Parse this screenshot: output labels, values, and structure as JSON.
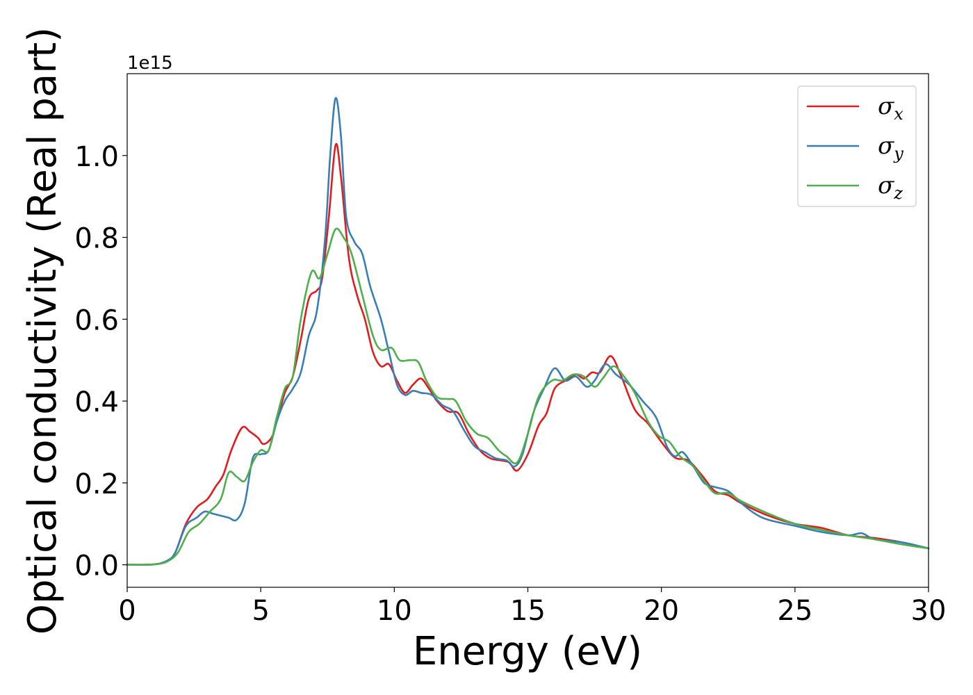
{
  "chart_data": {
    "type": "line",
    "xlabel": "Energy (eV)",
    "ylabel": "Optical conductivity (Real part)",
    "y_offset_label": "1e15",
    "xlim": [
      0,
      30
    ],
    "ylim": [
      -0.055,
      1.2
    ],
    "x_ticks": [
      0,
      5,
      10,
      15,
      20,
      25,
      30
    ],
    "x_tick_labels": [
      "0",
      "5",
      "10",
      "15",
      "20",
      "25",
      "30"
    ],
    "y_ticks": [
      0.0,
      0.2,
      0.4,
      0.6,
      0.8,
      1.0
    ],
    "y_tick_labels": [
      "0.0",
      "0.2",
      "0.4",
      "0.6",
      "0.8",
      "1.0"
    ],
    "grid": false,
    "legend_position": "top-right",
    "series": [
      {
        "name": "σx",
        "symbol": "σ",
        "subscript": "x",
        "color": "#e41a1c",
        "points": [
          [
            0,
            0.0
          ],
          [
            1.0,
            0.001
          ],
          [
            1.5,
            0.01
          ],
          [
            1.8,
            0.03
          ],
          [
            2.2,
            0.1
          ],
          [
            2.6,
            0.14
          ],
          [
            3.0,
            0.16
          ],
          [
            3.3,
            0.19
          ],
          [
            3.6,
            0.22
          ],
          [
            3.9,
            0.28
          ],
          [
            4.3,
            0.335
          ],
          [
            4.6,
            0.325
          ],
          [
            4.9,
            0.31
          ],
          [
            5.1,
            0.295
          ],
          [
            5.4,
            0.31
          ],
          [
            5.6,
            0.35
          ],
          [
            5.9,
            0.42
          ],
          [
            6.2,
            0.46
          ],
          [
            6.5,
            0.55
          ],
          [
            6.8,
            0.65
          ],
          [
            7.1,
            0.67
          ],
          [
            7.3,
            0.7
          ],
          [
            7.55,
            0.85
          ],
          [
            7.8,
            1.025
          ],
          [
            8.0,
            0.95
          ],
          [
            8.3,
            0.75
          ],
          [
            8.6,
            0.66
          ],
          [
            8.9,
            0.6
          ],
          [
            9.2,
            0.52
          ],
          [
            9.5,
            0.485
          ],
          [
            9.8,
            0.49
          ],
          [
            10.1,
            0.45
          ],
          [
            10.4,
            0.42
          ],
          [
            10.7,
            0.44
          ],
          [
            11.0,
            0.455
          ],
          [
            11.3,
            0.43
          ],
          [
            11.6,
            0.4
          ],
          [
            12.0,
            0.375
          ],
          [
            12.4,
            0.37
          ],
          [
            12.8,
            0.32
          ],
          [
            13.2,
            0.28
          ],
          [
            13.6,
            0.26
          ],
          [
            14.0,
            0.255
          ],
          [
            14.3,
            0.25
          ],
          [
            14.6,
            0.23
          ],
          [
            15.0,
            0.27
          ],
          [
            15.4,
            0.34
          ],
          [
            15.7,
            0.37
          ],
          [
            16.0,
            0.43
          ],
          [
            16.4,
            0.45
          ],
          [
            16.8,
            0.465
          ],
          [
            17.1,
            0.455
          ],
          [
            17.4,
            0.47
          ],
          [
            17.7,
            0.47
          ],
          [
            18.1,
            0.51
          ],
          [
            18.5,
            0.46
          ],
          [
            19.0,
            0.38
          ],
          [
            19.5,
            0.345
          ],
          [
            20.0,
            0.3
          ],
          [
            20.5,
            0.262
          ],
          [
            21.0,
            0.255
          ],
          [
            21.5,
            0.22
          ],
          [
            22.0,
            0.18
          ],
          [
            22.5,
            0.17
          ],
          [
            23.0,
            0.15
          ],
          [
            24.0,
            0.12
          ],
          [
            25.0,
            0.1
          ],
          [
            26.0,
            0.09
          ],
          [
            27.0,
            0.072
          ],
          [
            28.0,
            0.065
          ],
          [
            29.0,
            0.055
          ],
          [
            30.0,
            0.04
          ]
        ]
      },
      {
        "name": "σy",
        "symbol": "σ",
        "subscript": "y",
        "color": "#377eb8",
        "points": [
          [
            0,
            0.0
          ],
          [
            1.0,
            0.001
          ],
          [
            1.5,
            0.01
          ],
          [
            1.8,
            0.03
          ],
          [
            2.2,
            0.095
          ],
          [
            2.6,
            0.115
          ],
          [
            2.9,
            0.13
          ],
          [
            3.2,
            0.125
          ],
          [
            3.5,
            0.12
          ],
          [
            3.8,
            0.115
          ],
          [
            4.1,
            0.11
          ],
          [
            4.4,
            0.15
          ],
          [
            4.7,
            0.26
          ],
          [
            5.0,
            0.27
          ],
          [
            5.3,
            0.28
          ],
          [
            5.6,
            0.35
          ],
          [
            5.9,
            0.4
          ],
          [
            6.2,
            0.43
          ],
          [
            6.5,
            0.47
          ],
          [
            6.8,
            0.56
          ],
          [
            7.1,
            0.62
          ],
          [
            7.4,
            0.79
          ],
          [
            7.6,
            1.0
          ],
          [
            7.8,
            1.14
          ],
          [
            8.0,
            1.05
          ],
          [
            8.2,
            0.85
          ],
          [
            8.5,
            0.79
          ],
          [
            8.8,
            0.76
          ],
          [
            9.1,
            0.68
          ],
          [
            9.5,
            0.6
          ],
          [
            9.8,
            0.52
          ],
          [
            10.1,
            0.44
          ],
          [
            10.4,
            0.415
          ],
          [
            10.7,
            0.425
          ],
          [
            11.0,
            0.42
          ],
          [
            11.4,
            0.415
          ],
          [
            11.8,
            0.39
          ],
          [
            12.2,
            0.375
          ],
          [
            12.6,
            0.33
          ],
          [
            13.0,
            0.29
          ],
          [
            13.4,
            0.275
          ],
          [
            13.8,
            0.26
          ],
          [
            14.2,
            0.255
          ],
          [
            14.5,
            0.24
          ],
          [
            14.8,
            0.27
          ],
          [
            15.2,
            0.37
          ],
          [
            15.6,
            0.43
          ],
          [
            16.0,
            0.48
          ],
          [
            16.4,
            0.45
          ],
          [
            16.8,
            0.46
          ],
          [
            17.2,
            0.435
          ],
          [
            17.5,
            0.45
          ],
          [
            17.9,
            0.49
          ],
          [
            18.3,
            0.465
          ],
          [
            18.8,
            0.44
          ],
          [
            19.3,
            0.4
          ],
          [
            19.8,
            0.36
          ],
          [
            20.2,
            0.29
          ],
          [
            20.5,
            0.265
          ],
          [
            20.8,
            0.275
          ],
          [
            21.2,
            0.24
          ],
          [
            21.6,
            0.2
          ],
          [
            22.0,
            0.19
          ],
          [
            22.5,
            0.18
          ],
          [
            23.0,
            0.15
          ],
          [
            23.5,
            0.125
          ],
          [
            24.0,
            0.11
          ],
          [
            25.0,
            0.095
          ],
          [
            26.0,
            0.08
          ],
          [
            27.0,
            0.072
          ],
          [
            27.5,
            0.077
          ],
          [
            28.0,
            0.062
          ],
          [
            29.0,
            0.055
          ],
          [
            30.0,
            0.04
          ]
        ]
      },
      {
        "name": "σz",
        "symbol": "σ",
        "subscript": "z",
        "color": "#4daf4a",
        "points": [
          [
            0,
            0.0
          ],
          [
            1.0,
            0.001
          ],
          [
            1.5,
            0.008
          ],
          [
            1.9,
            0.03
          ],
          [
            2.3,
            0.08
          ],
          [
            2.7,
            0.1
          ],
          [
            3.1,
            0.13
          ],
          [
            3.5,
            0.16
          ],
          [
            3.8,
            0.225
          ],
          [
            4.1,
            0.215
          ],
          [
            4.4,
            0.205
          ],
          [
            4.7,
            0.25
          ],
          [
            5.0,
            0.28
          ],
          [
            5.3,
            0.28
          ],
          [
            5.6,
            0.36
          ],
          [
            5.9,
            0.43
          ],
          [
            6.2,
            0.46
          ],
          [
            6.5,
            0.6
          ],
          [
            6.9,
            0.715
          ],
          [
            7.2,
            0.7
          ],
          [
            7.5,
            0.76
          ],
          [
            7.8,
            0.82
          ],
          [
            8.1,
            0.8
          ],
          [
            8.4,
            0.76
          ],
          [
            8.8,
            0.66
          ],
          [
            9.2,
            0.56
          ],
          [
            9.5,
            0.525
          ],
          [
            9.9,
            0.53
          ],
          [
            10.2,
            0.5
          ],
          [
            10.6,
            0.5
          ],
          [
            10.9,
            0.495
          ],
          [
            11.2,
            0.45
          ],
          [
            11.6,
            0.41
          ],
          [
            12.0,
            0.405
          ],
          [
            12.3,
            0.4
          ],
          [
            12.7,
            0.35
          ],
          [
            13.1,
            0.32
          ],
          [
            13.5,
            0.31
          ],
          [
            13.9,
            0.28
          ],
          [
            14.2,
            0.265
          ],
          [
            14.6,
            0.25
          ],
          [
            15.0,
            0.32
          ],
          [
            15.4,
            0.41
          ],
          [
            15.9,
            0.45
          ],
          [
            16.3,
            0.45
          ],
          [
            16.7,
            0.465
          ],
          [
            17.1,
            0.46
          ],
          [
            17.5,
            0.435
          ],
          [
            17.8,
            0.455
          ],
          [
            18.2,
            0.485
          ],
          [
            18.6,
            0.46
          ],
          [
            19.0,
            0.42
          ],
          [
            19.5,
            0.35
          ],
          [
            19.9,
            0.315
          ],
          [
            20.3,
            0.3
          ],
          [
            20.7,
            0.265
          ],
          [
            21.2,
            0.24
          ],
          [
            21.6,
            0.205
          ],
          [
            22.0,
            0.175
          ],
          [
            22.5,
            0.175
          ],
          [
            23.0,
            0.155
          ],
          [
            24.0,
            0.125
          ],
          [
            25.0,
            0.1
          ],
          [
            26.0,
            0.085
          ],
          [
            27.0,
            0.072
          ],
          [
            28.0,
            0.062
          ],
          [
            29.0,
            0.05
          ],
          [
            30.0,
            0.04
          ]
        ]
      }
    ]
  }
}
